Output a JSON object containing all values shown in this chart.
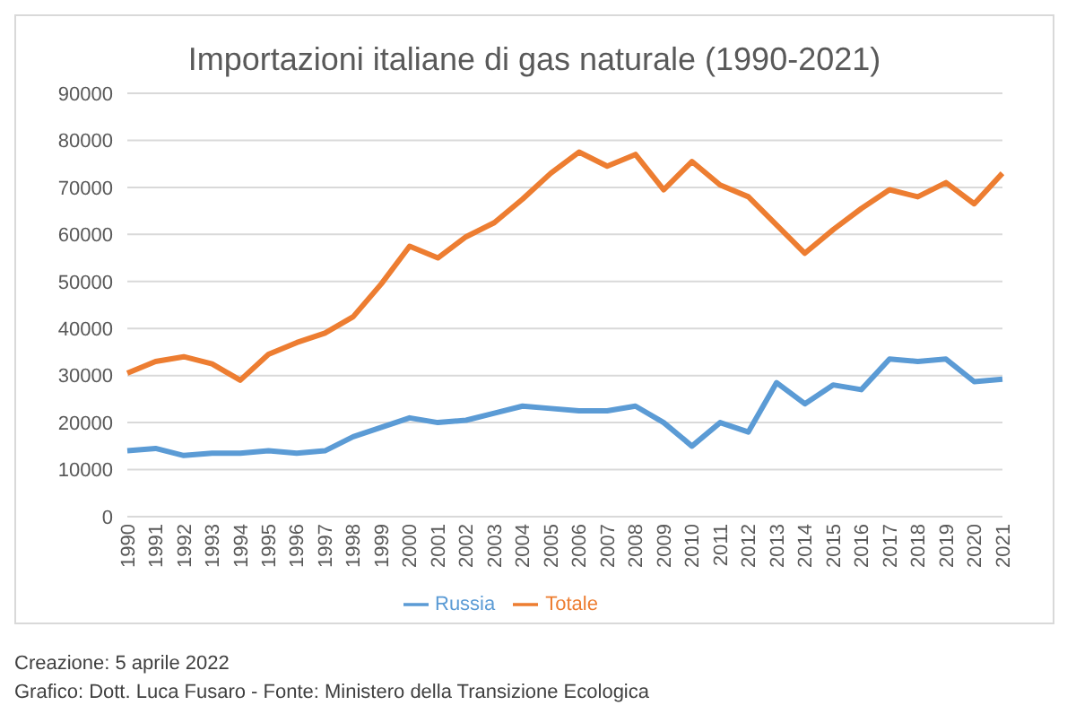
{
  "chart_data": {
    "type": "line",
    "title": "Importazioni italiane di gas naturale (1990-2021)",
    "categories": [
      "1990",
      "1991",
      "1992",
      "1993",
      "1994",
      "1995",
      "1996",
      "1997",
      "1998",
      "1999",
      "2000",
      "2001",
      "2002",
      "2003",
      "2004",
      "2005",
      "2006",
      "2007",
      "2008",
      "2009",
      "2010",
      "2011",
      "2012",
      "2013",
      "2014",
      "2015",
      "2016",
      "2017",
      "2018",
      "2019",
      "2020",
      "2021"
    ],
    "series": [
      {
        "name": "Russia",
        "color": "#5b9bd5",
        "values": [
          14000,
          14500,
          13000,
          13500,
          13500,
          14000,
          13500,
          14000,
          17000,
          19000,
          21000,
          20000,
          20500,
          22000,
          23500,
          23000,
          22500,
          22500,
          23500,
          20000,
          15000,
          20000,
          18000,
          28500,
          24000,
          28000,
          27000,
          33500,
          33000,
          33500,
          28700,
          29200
        ]
      },
      {
        "name": "Totale",
        "color": "#ed7d31",
        "values": [
          30500,
          33000,
          34000,
          32500,
          29000,
          34500,
          37000,
          39000,
          42500,
          49500,
          57500,
          55000,
          59500,
          62500,
          67500,
          73000,
          77500,
          74500,
          77000,
          69500,
          75500,
          70500,
          68000,
          62000,
          56000,
          61000,
          65500,
          69500,
          68000,
          71000,
          66500,
          73000
        ]
      }
    ],
    "ylim": [
      0,
      90000
    ],
    "yticks": [
      0,
      10000,
      20000,
      30000,
      40000,
      50000,
      60000,
      70000,
      80000,
      90000
    ],
    "grid": "y",
    "legend": "bottom",
    "marker": "none",
    "line_style": "solid",
    "annotations": [
      "Creazione: 5 aprile 2022",
      "Grafico: Dott. Luca Fusaro - Fonte: Ministero della Transizione Ecologica"
    ]
  }
}
